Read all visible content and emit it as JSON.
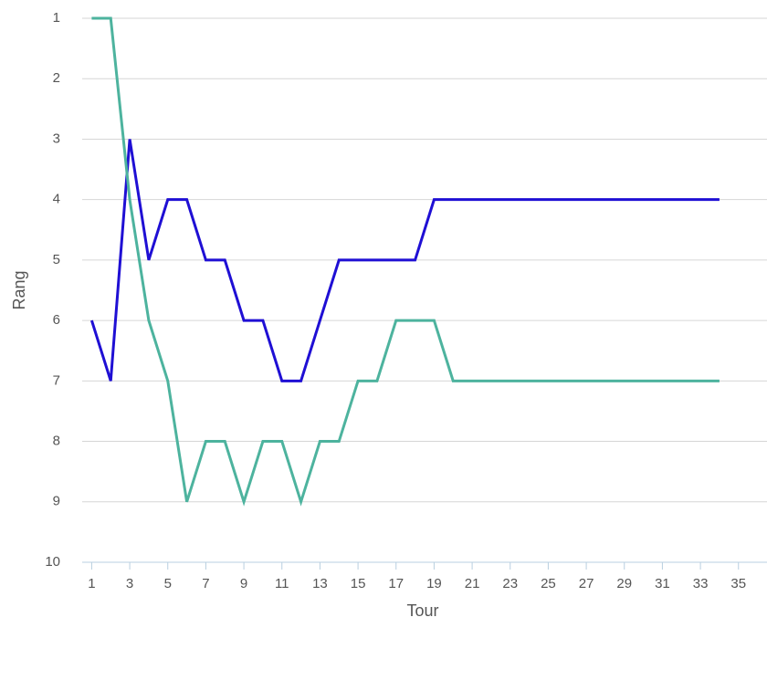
{
  "chart_data": {
    "type": "line",
    "x_label": "Tour",
    "y_label": "Rang",
    "x": [
      1,
      2,
      3,
      4,
      5,
      6,
      7,
      8,
      9,
      10,
      11,
      12,
      13,
      14,
      15,
      16,
      17,
      18,
      19,
      20,
      21,
      22,
      23,
      24,
      25,
      26,
      27,
      28,
      29,
      30,
      31,
      32,
      33,
      34
    ],
    "series": [
      {
        "color": "#1f0fd4",
        "values": [
          6,
          7,
          3,
          5,
          4,
          4,
          5,
          5,
          6,
          6,
          7,
          7,
          6,
          5,
          5,
          5,
          5,
          5,
          4,
          4,
          4,
          4,
          4,
          4,
          4,
          4,
          4,
          4,
          4,
          4,
          4,
          4,
          4,
          4
        ]
      },
      {
        "color": "#4db39e",
        "values": [
          1,
          1,
          4,
          6,
          7,
          9,
          8,
          8,
          9,
          8,
          8,
          9,
          8,
          8,
          7,
          7,
          6,
          6,
          6,
          7,
          7,
          7,
          7,
          7,
          7,
          7,
          7,
          7,
          7,
          7,
          7,
          7,
          7,
          7
        ]
      }
    ],
    "xlim": [
      0.5,
      36.5
    ],
    "xticks": [
      1,
      3,
      5,
      7,
      9,
      11,
      13,
      15,
      17,
      19,
      21,
      23,
      25,
      27,
      29,
      31,
      33,
      35
    ],
    "ylim": [
      1,
      10
    ],
    "yticks": [
      1,
      2,
      3,
      4,
      5,
      6,
      7,
      8,
      9,
      10
    ],
    "y_reversed": true,
    "grid": true
  }
}
